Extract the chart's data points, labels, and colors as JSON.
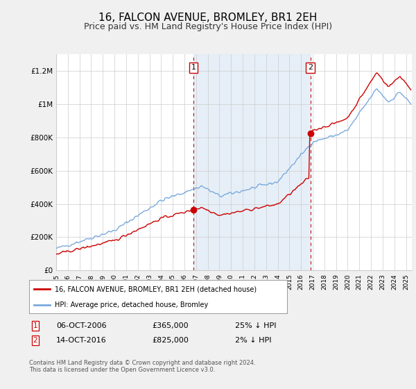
{
  "title": "16, FALCON AVENUE, BROMLEY, BR1 2EH",
  "subtitle": "Price paid vs. HM Land Registry's House Price Index (HPI)",
  "title_fontsize": 11,
  "subtitle_fontsize": 9,
  "ylim": [
    0,
    1300000
  ],
  "xlim_start": 1995.0,
  "xlim_end": 2025.5,
  "yticks": [
    0,
    200000,
    400000,
    600000,
    800000,
    1000000,
    1200000
  ],
  "ytick_labels": [
    "£0",
    "£200K",
    "£400K",
    "£600K",
    "£800K",
    "£1M",
    "£1.2M"
  ],
  "xtick_years": [
    1995,
    1996,
    1997,
    1998,
    1999,
    2000,
    2001,
    2002,
    2003,
    2004,
    2005,
    2006,
    2007,
    2008,
    2009,
    2010,
    2011,
    2012,
    2013,
    2014,
    2015,
    2016,
    2017,
    2018,
    2019,
    2020,
    2021,
    2022,
    2023,
    2024,
    2025
  ],
  "purchase1_x": 2006.77,
  "purchase1_y": 365000,
  "purchase2_x": 2016.79,
  "purchase2_y": 825000,
  "purchase1_label": "06-OCT-2006",
  "purchase2_label": "14-OCT-2016",
  "purchase1_price": "£365,000",
  "purchase2_price": "£825,000",
  "purchase1_hpi": "25% ↓ HPI",
  "purchase2_hpi": "2% ↓ HPI",
  "shade_color": "#dce9f5",
  "shade_alpha": 0.7,
  "red_color": "#cc0000",
  "blue_color": "#7aaadd",
  "bg_color": "#f0f0f0",
  "plot_bg": "#ffffff",
  "grid_color": "#cccccc",
  "legend_label_red": "16, FALCON AVENUE, BROMLEY, BR1 2EH (detached house)",
  "legend_label_blue": "HPI: Average price, detached house, Bromley",
  "footer": "Contains HM Land Registry data © Crown copyright and database right 2024.\nThis data is licensed under the Open Government Licence v3.0."
}
